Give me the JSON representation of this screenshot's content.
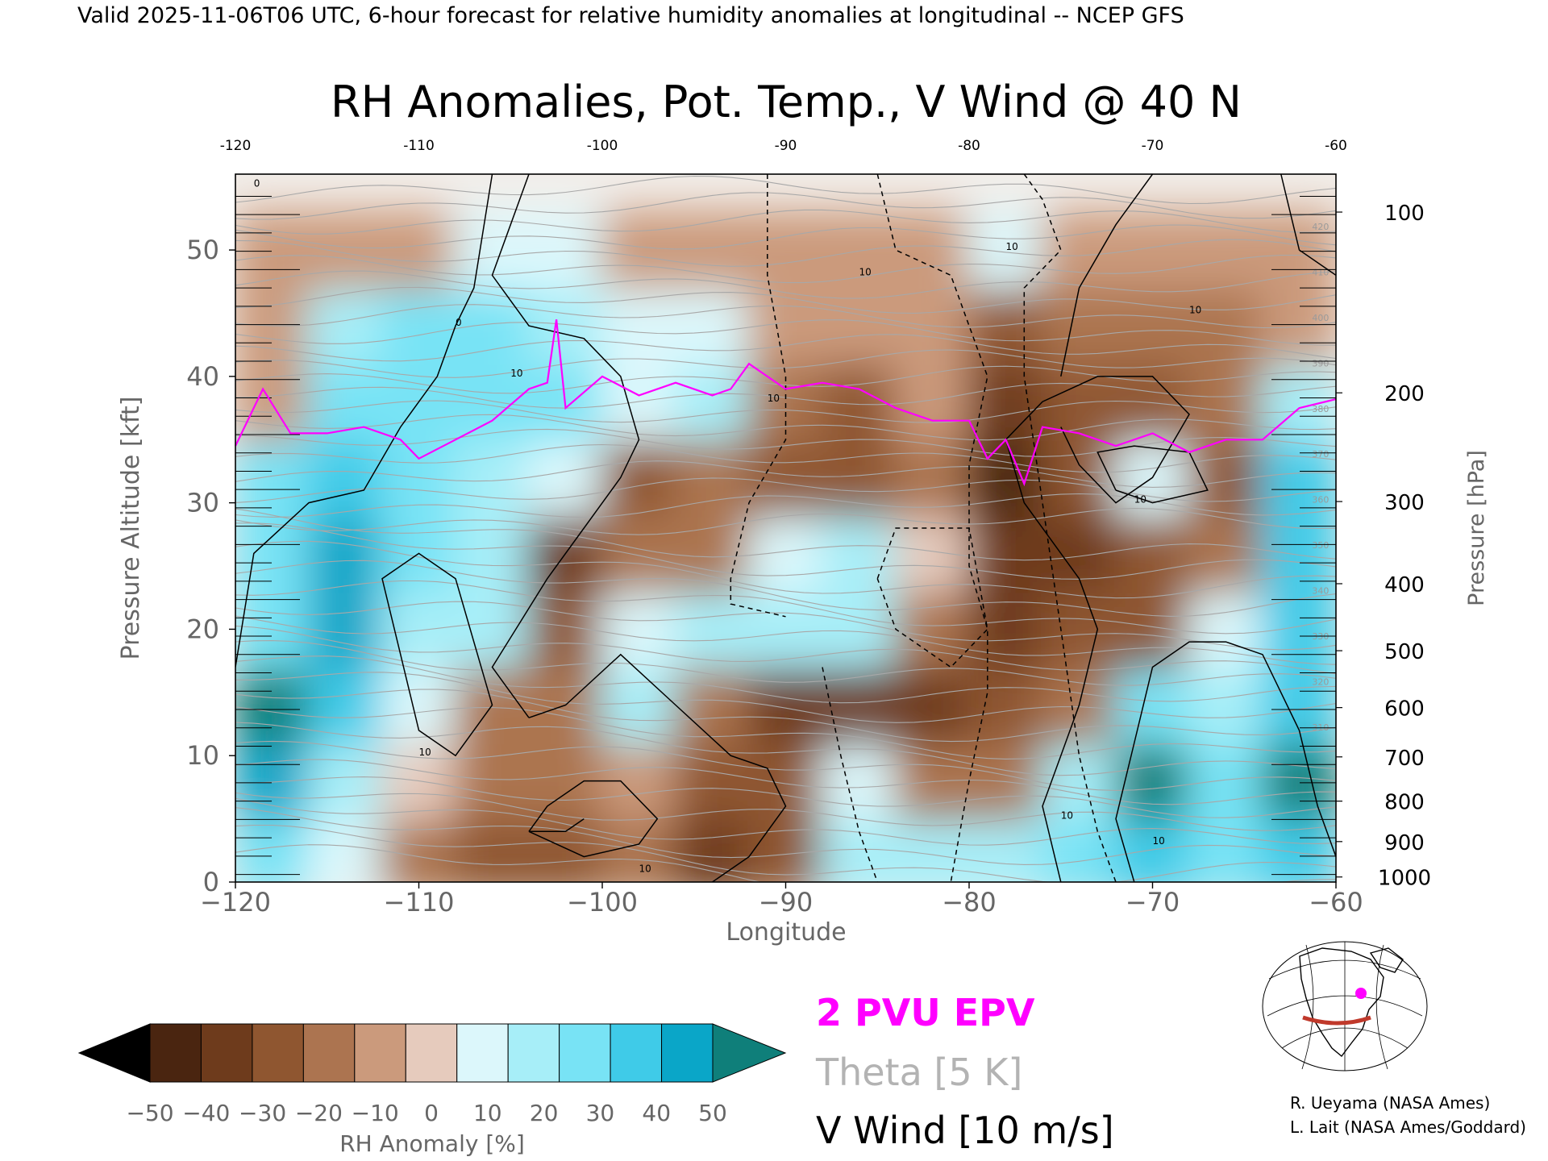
{
  "header": {
    "valid_line": "Valid 2025-11-06T06 UTC, 6-hour forecast for relative humidity anomalies at longitudinal -- NCEP GFS",
    "title": "RH Anomalies, Pot. Temp., V Wind @ 40 N"
  },
  "chart_data": {
    "type": "heatmap",
    "title": "RH Anomalies, Pot. Temp., V Wind @ 40 N",
    "xlabel": "Longitude",
    "ylabel_left": "Pressure Altitude [kft]",
    "ylabel_right": "Pressure [hPa]",
    "xlim": [
      -120,
      -60
    ],
    "ylim": [
      0,
      56
    ],
    "x_ticks": [
      -120,
      -110,
      -100,
      -90,
      -80,
      -70,
      -60
    ],
    "x_tick_labels": [
      "−120",
      "−110",
      "−100",
      "−90",
      "−80",
      "−70",
      "−60"
    ],
    "top_ticks": [
      "-120",
      "-110",
      "-100",
      "-90",
      "-80",
      "-70",
      "-60"
    ],
    "y_ticks": [
      0,
      10,
      20,
      30,
      40,
      50
    ],
    "pressure_ticks": [
      {
        "hPa": "100",
        "kft": 53
      },
      {
        "hPa": "200",
        "kft": 38.7
      },
      {
        "hPa": "300",
        "kft": 30.1
      },
      {
        "hPa": "400",
        "kft": 23.6
      },
      {
        "hPa": "500",
        "kft": 18.3
      },
      {
        "hPa": "600",
        "kft": 13.8
      },
      {
        "hPa": "700",
        "kft": 9.9
      },
      {
        "hPa": "800",
        "kft": 6.4
      },
      {
        "hPa": "900",
        "kft": 3.2
      },
      {
        "hPa": "1000",
        "kft": 0.4
      }
    ],
    "grid": false,
    "rh_anomaly_cells": {
      "description_units": "percent",
      "x_centers": [
        -118,
        -114,
        -110,
        -106,
        -102,
        -98,
        -94,
        -90,
        -86,
        -82,
        -78,
        -74,
        -70,
        -66,
        -62
      ],
      "y_centers": [
        2,
        8,
        14,
        20,
        26,
        32,
        38,
        44,
        50
      ],
      "values": [
        [
          30,
          10,
          -20,
          -30,
          -25,
          -20,
          -35,
          -30,
          15,
          20,
          15,
          30,
          40,
          30,
          40
        ],
        [
          45,
          20,
          0,
          -20,
          -20,
          -10,
          -30,
          -30,
          10,
          -20,
          -20,
          20,
          50,
          30,
          50
        ],
        [
          50,
          40,
          10,
          -20,
          -20,
          15,
          -20,
          -40,
          -35,
          -40,
          -30,
          -20,
          30,
          20,
          40
        ],
        [
          30,
          45,
          20,
          20,
          -30,
          10,
          20,
          20,
          20,
          -20,
          -40,
          -30,
          -30,
          10,
          40
        ],
        [
          30,
          45,
          30,
          15,
          -40,
          -20,
          -20,
          10,
          20,
          0,
          -40,
          -40,
          -30,
          -20,
          40
        ],
        [
          30,
          40,
          30,
          20,
          10,
          -30,
          -20,
          -30,
          -30,
          -20,
          -45,
          -30,
          10,
          -30,
          40
        ],
        [
          -10,
          30,
          30,
          30,
          30,
          10,
          20,
          -20,
          -25,
          -10,
          -40,
          -30,
          -30,
          -20,
          20
        ],
        [
          -10,
          20,
          30,
          30,
          20,
          10,
          5,
          -10,
          -10,
          -10,
          -30,
          -20,
          -15,
          -15,
          -10
        ],
        [
          -5,
          -5,
          -5,
          5,
          5,
          -5,
          -5,
          -10,
          -5,
          -5,
          5,
          -5,
          -5,
          -5,
          -5
        ]
      ]
    },
    "epv_2pvu_line": {
      "x": [
        -120,
        -118.5,
        -117,
        -115,
        -113,
        -111,
        -110,
        -108,
        -106,
        -104,
        -103,
        -102.5,
        -102,
        -100,
        -98,
        -96,
        -94,
        -93,
        -92,
        -90,
        -88,
        -86,
        -84,
        -82,
        -80,
        -79,
        -78,
        -77,
        -76,
        -74,
        -72,
        -70,
        -68,
        -66,
        -64,
        -62,
        -60
      ],
      "y": [
        34.5,
        39,
        35.5,
        35.5,
        36,
        35,
        33.5,
        35,
        36.5,
        39,
        39.5,
        44.5,
        37.5,
        40,
        38.5,
        39.5,
        38.5,
        39,
        41,
        39,
        39.5,
        39,
        37.5,
        36.5,
        36.5,
        33.5,
        35,
        31.5,
        36,
        35.5,
        34.5,
        35.5,
        34,
        35,
        35,
        37.5,
        38.2
      ]
    },
    "theta_levels_K": [
      "310",
      "320",
      "330",
      "340",
      "350",
      "360",
      "370",
      "380",
      "390",
      "400",
      "410",
      "420"
    ],
    "vwind_contour_labels": [
      "0",
      "10",
      "-10"
    ],
    "colorbar": {
      "label": "RH Anomaly [%]",
      "tick_labels": [
        "−50",
        "−40",
        "−30",
        "−20",
        "−10",
        "0",
        "10",
        "20",
        "30",
        "40",
        "50"
      ],
      "range": [
        -50,
        50
      ],
      "colors": {
        "below": "#000000",
        "bins": [
          "#4a2510",
          "#6e3b1c",
          "#8f5630",
          "#ac7450",
          "#cb9a7c",
          "#e6cbbd",
          "#dcf7fb",
          "#a7eef8",
          "#78e3f5",
          "#3fcbe8",
          "#0aa6c8"
        ],
        "above": "#0f7f7a"
      }
    }
  },
  "legend": {
    "epv_label": "2 PVU EPV",
    "epv_color": "#ff00ff",
    "theta_label": "Theta [5 K]",
    "theta_color": "#b3b3b3",
    "wind_label": "V Wind [10 m/s]",
    "wind_color": "#000000"
  },
  "credits": {
    "line1": "R. Ueyama (NASA Ames)",
    "line2": "L. Lait (NASA Ames/Goddard)"
  },
  "inset_map": {
    "marker_color": "#ff00ff",
    "section_color": "#c0392b"
  }
}
